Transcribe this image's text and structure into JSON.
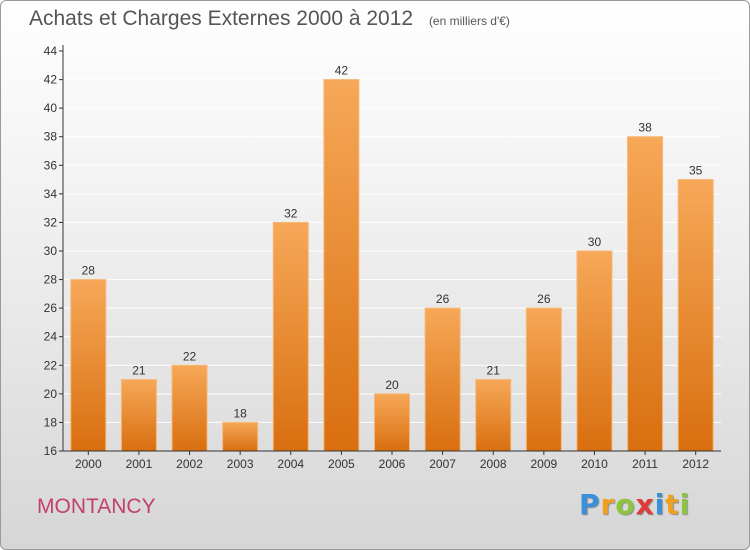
{
  "chart_data": {
    "type": "bar",
    "title": "Achats et Charges Externes 2000 à 2012",
    "subtitle": "(en milliers d'€)",
    "categories": [
      "2000",
      "2001",
      "2002",
      "2003",
      "2004",
      "2005",
      "2006",
      "2007",
      "2008",
      "2009",
      "2010",
      "2011",
      "2012"
    ],
    "values": [
      28,
      21,
      22,
      18,
      32,
      42,
      20,
      26,
      21,
      26,
      30,
      38,
      35
    ],
    "ylim": [
      16,
      44
    ],
    "yticks": [
      16,
      18,
      20,
      22,
      24,
      26,
      28,
      30,
      32,
      34,
      36,
      38,
      40,
      42,
      44
    ],
    "grid": true,
    "bar_color": "#e88a2e"
  },
  "commune": "MONTANCY",
  "logo": {
    "letters": [
      "P",
      "r",
      "o",
      "x",
      "i",
      "t",
      "i"
    ],
    "colors": [
      "#3a8fd6",
      "#f0a020",
      "#8cc63f",
      "#e03a3a",
      "#3a8fd6",
      "#f0a020",
      "#8cc63f"
    ]
  }
}
